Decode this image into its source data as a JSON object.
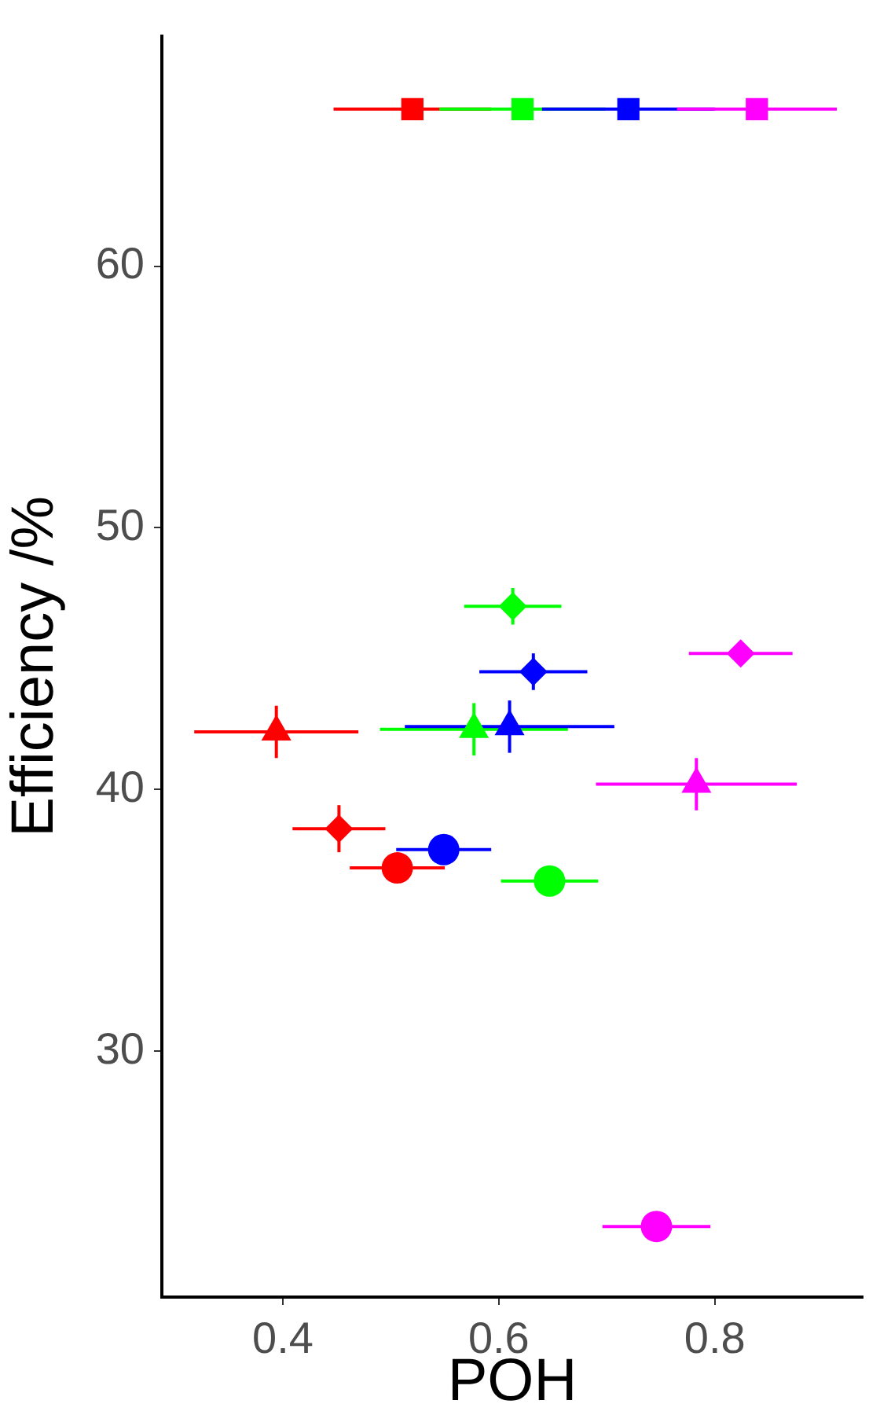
{
  "chart_data": {
    "type": "scatter",
    "xlabel": "POH",
    "ylabel": "Efficiency /%",
    "xlim": [
      0.288,
      0.937
    ],
    "ylim": [
      20.6,
      68.8
    ],
    "xticks": [
      0.4,
      0.6,
      0.8
    ],
    "yticks": [
      30,
      40,
      50,
      60
    ],
    "grid": false,
    "legend": false,
    "series": [
      {
        "marker": "square",
        "x": [
          0.52,
          0.622,
          0.72,
          0.839
        ],
        "values": [
          66,
          66,
          66,
          66
        ],
        "colors": [
          "#ff0000",
          "#00ff00",
          "#0000ff",
          "#ff00ff"
        ],
        "xerrors": [
          0.073,
          0.077,
          0.08,
          0.074
        ]
      },
      {
        "marker": "diamond",
        "x": [
          0.452,
          0.613,
          0.632,
          0.824
        ],
        "values": [
          38.5,
          47.0,
          44.5,
          45.2
        ],
        "colors": [
          "#ff0000",
          "#00ff00",
          "#0000ff",
          "#ff00ff"
        ],
        "xerrors": [
          0.043,
          0.045,
          0.05,
          0.048
        ],
        "errors": [
          0.9,
          0.7,
          0.7,
          null
        ]
      },
      {
        "marker": "triangle",
        "x": [
          0.394,
          0.577,
          0.61,
          0.783
        ],
        "values": [
          42.2,
          42.3,
          42.4,
          40.2
        ],
        "colors": [
          "#ff0000",
          "#00ff00",
          "#0000ff",
          "#ff00ff"
        ],
        "xerrors": [
          0.076,
          0.087,
          0.097,
          0.093
        ],
        "errors": [
          1.0,
          1.0,
          1.0,
          1.0
        ]
      },
      {
        "marker": "circle",
        "x": [
          0.506,
          0.647,
          0.549,
          0.746
        ],
        "values": [
          37.0,
          36.5,
          37.7,
          23.3
        ],
        "colors": [
          "#ff0000",
          "#00ff00",
          "#0000ff",
          "#ff00ff"
        ],
        "xerrors": [
          0.044,
          0.045,
          0.044,
          0.05
        ]
      }
    ]
  }
}
